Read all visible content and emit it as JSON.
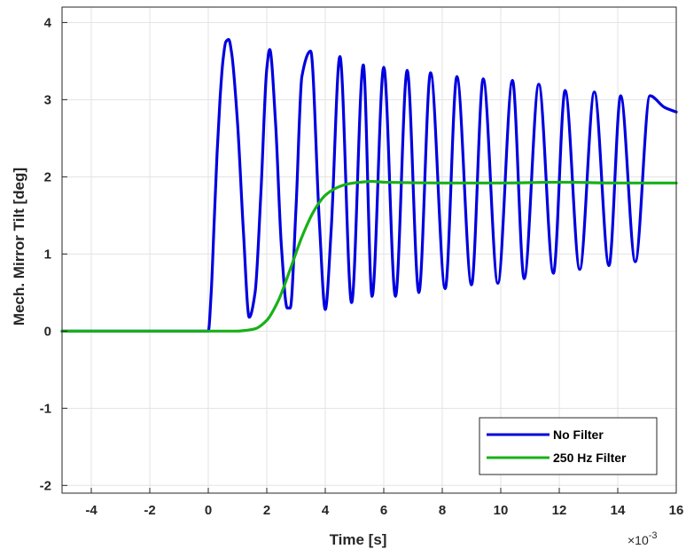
{
  "chart_data": {
    "type": "line",
    "xlabel": "Time [s]",
    "ylabel": "Mech. Mirror Tilt [deg]",
    "x_exponent_base": "×10",
    "x_exponent_power": "-3",
    "xlim": [
      -5,
      16
    ],
    "ylim": [
      -2.1,
      4.2
    ],
    "grid": true,
    "legend_position": "bottom-right",
    "x_ticks": [
      -4,
      -2,
      0,
      2,
      4,
      6,
      8,
      10,
      12,
      14,
      16
    ],
    "x_tick_labels": [
      "-4",
      "-2",
      "0",
      "2",
      "4",
      "6",
      "8",
      "10",
      "12",
      "14",
      "16"
    ],
    "y_ticks": [
      -2,
      -1,
      0,
      1,
      2,
      3,
      4
    ],
    "y_tick_labels": [
      "-2",
      "-1",
      "0",
      "1",
      "2",
      "3",
      "4"
    ],
    "series": [
      {
        "name": "No Filter",
        "color": "#0000e0",
        "x": [
          -5,
          0,
          0.1,
          0.2,
          0.3,
          0.4,
          0.5,
          0.6,
          0.7,
          0.8,
          1.0,
          1.2,
          1.4,
          1.6,
          1.8,
          2.0,
          2.1,
          2.3,
          2.5,
          2.7,
          2.8,
          3.0,
          3.2,
          3.5,
          3.8,
          4.0,
          4.2,
          4.5,
          4.9,
          5.3,
          5.6,
          6.0,
          6.4,
          6.8,
          7.2,
          7.6,
          8.1,
          8.5,
          9.0,
          9.4,
          9.9,
          10.4,
          10.8,
          11.3,
          11.8,
          12.2,
          12.7,
          13.2,
          13.7,
          14.1,
          14.6,
          15.1,
          15.6,
          16.0
        ],
        "y": [
          0,
          0,
          0.5,
          1.4,
          2.3,
          3.0,
          3.5,
          3.75,
          3.78,
          3.6,
          2.7,
          1.3,
          0.18,
          0.5,
          1.8,
          3.4,
          3.65,
          2.7,
          1.1,
          0.3,
          0.3,
          1.6,
          3.3,
          3.63,
          1.4,
          0.28,
          1.3,
          3.56,
          0.37,
          3.45,
          0.45,
          3.42,
          0.45,
          3.38,
          0.5,
          3.35,
          0.55,
          3.3,
          0.6,
          3.27,
          0.62,
          3.25,
          0.68,
          3.2,
          0.75,
          3.12,
          0.8,
          3.1,
          0.85,
          3.05,
          0.9,
          3.05,
          2.9,
          2.84
        ]
      },
      {
        "name": "250 Hz Filter",
        "color": "#17b117",
        "x": [
          -5,
          1.0,
          1.3,
          1.6,
          2.0,
          2.4,
          2.8,
          3.2,
          3.6,
          4.0,
          4.4,
          4.8,
          5.2,
          5.6,
          6.0,
          8.0,
          10.0,
          12.0,
          14.0,
          16.0
        ],
        "y": [
          0,
          0,
          0.01,
          0.03,
          0.14,
          0.4,
          0.8,
          1.22,
          1.55,
          1.76,
          1.86,
          1.91,
          1.93,
          1.94,
          1.93,
          1.92,
          1.92,
          1.93,
          1.92,
          1.92
        ]
      }
    ]
  }
}
